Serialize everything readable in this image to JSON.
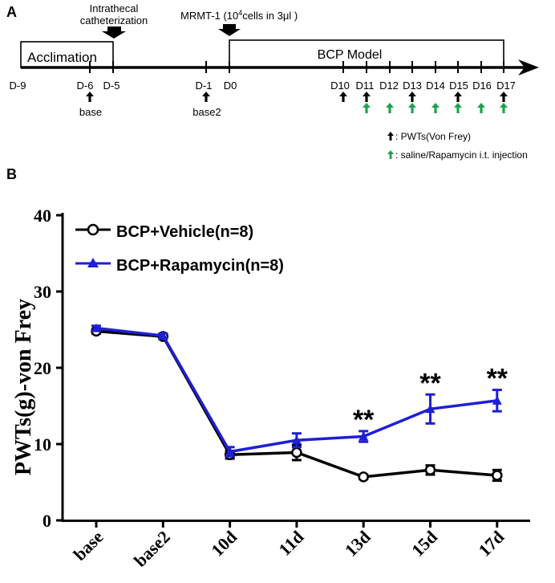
{
  "panel_a": {
    "label": "A",
    "intrathecal_line1": "Intrathecal",
    "intrathecal_line2": "catheterization",
    "mrmt_prefix": "MRMT-1 (10",
    "mrmt_sup": "4",
    "mrmt_suffix": "cells in 3μl )",
    "acclimation": "Acclimation",
    "bcp_model": "BCP Model",
    "days": [
      "D-9",
      "D-6",
      "D-5",
      "D-1",
      "D0",
      "D10",
      "D11",
      "D12",
      "D13",
      "D14",
      "D15",
      "D16",
      "D17"
    ],
    "base_label": "base",
    "base2_label": "base2",
    "legend_pwts": ": PWTs(Von Frey)",
    "legend_injection": ": saline/Rapamycin i.t. injection",
    "colors": {
      "pwt_arrow": "#000000",
      "injection_arrow": "#1aa34a"
    }
  },
  "panel_b": {
    "label": "B",
    "significance": "**"
  },
  "chart_data": {
    "type": "line",
    "title": "",
    "xlabel": "",
    "ylabel": "PWTs(g)-von Frey",
    "categories": [
      "base",
      "base2",
      "10d",
      "11d",
      "13d",
      "15d",
      "17d"
    ],
    "ylim": [
      0,
      40
    ],
    "yticks": [
      0,
      10,
      20,
      30,
      40
    ],
    "grid": false,
    "legend_position": "top-left",
    "series": [
      {
        "name": "BCP+Vehicle(n=8)",
        "color": "#000000",
        "marker": "circle",
        "values": [
          24.8,
          24.1,
          8.6,
          8.9,
          5.7,
          6.6,
          5.9
        ],
        "errors": [
          0.3,
          0.3,
          0.5,
          1.0,
          0.3,
          0.6,
          0.7
        ]
      },
      {
        "name": "BCP+Rapamycin(n=8)",
        "color": "#1f1fd6",
        "marker": "triangle",
        "values": [
          25.2,
          24.2,
          9.0,
          10.5,
          11.0,
          14.6,
          15.7
        ],
        "errors": [
          0.3,
          0.3,
          0.6,
          0.9,
          0.7,
          1.9,
          1.4
        ]
      }
    ],
    "annotations": [
      {
        "category": "13d",
        "text": "**"
      },
      {
        "category": "15d",
        "text": "**"
      },
      {
        "category": "17d",
        "text": "**"
      }
    ]
  }
}
